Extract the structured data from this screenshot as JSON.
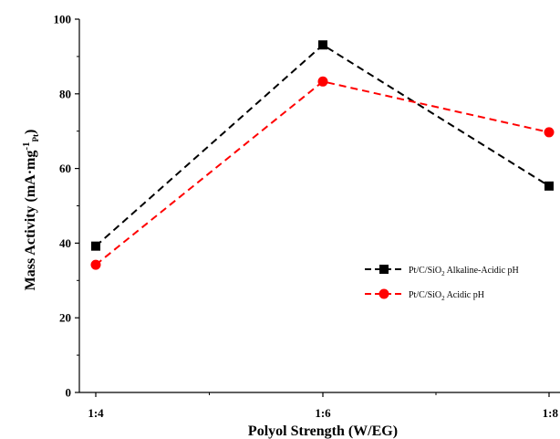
{
  "chart_data": {
    "type": "line",
    "categories": [
      "1:4",
      "1:6",
      "1:8"
    ],
    "xlabel": "Polyol Strength (W/EG)",
    "ylabel": {
      "main": "Mass Activity (mA·mg",
      "sup": "-1",
      "sub": "Pt",
      "close": ")"
    },
    "ylim": [
      0,
      100
    ],
    "yticks": [
      "0",
      "20",
      "40",
      "60",
      "80",
      "100"
    ],
    "grid": false,
    "legend_position": "right",
    "series": [
      {
        "name": {
          "a": "Pt/C/SiO",
          "sub": "2",
          "b": " Alkaline-Acidic pH"
        },
        "values": [
          39.2,
          93.1,
          55.3
        ],
        "color": "#000000",
        "marker": "square",
        "line_style": "dashed"
      },
      {
        "name": {
          "a": "Pt/C/SiO",
          "sub": "2",
          "b": " Acidic pH"
        },
        "values": [
          34.2,
          83.3,
          69.7
        ],
        "color": "#ff0000",
        "marker": "circle",
        "line_style": "dashed"
      }
    ]
  }
}
